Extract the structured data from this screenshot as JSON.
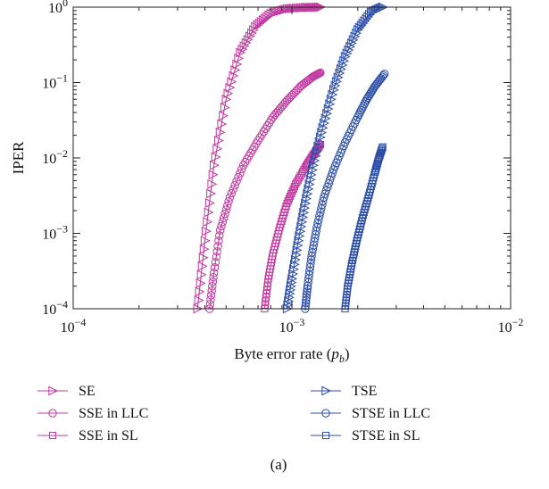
{
  "colors": {
    "magenta": "#C0389F",
    "blue": "#2A4CA6"
  },
  "chart_data": {
    "type": "line",
    "title": "",
    "xlabel": "Byte error rate (",
    "xlabel_symbol": "p",
    "xlabel_subscript": "b",
    "xlabel_suffix": ")",
    "ylabel": "IPER",
    "x_scale": "log",
    "y_scale": "log",
    "xlim": [
      0.0001,
      0.01
    ],
    "ylim": [
      0.0001,
      1
    ],
    "x_ticks": [
      {
        "base": "10",
        "exp": "−4"
      },
      {
        "base": "10",
        "exp": "−3"
      },
      {
        "base": "10",
        "exp": "−2"
      }
    ],
    "y_ticks": [
      {
        "base": "10",
        "exp": "0"
      },
      {
        "base": "10",
        "exp": "−1"
      },
      {
        "base": "10",
        "exp": "−2"
      },
      {
        "base": "10",
        "exp": "−3"
      },
      {
        "base": "10",
        "exp": "−4"
      }
    ],
    "grid": false,
    "legend_position": "below",
    "caption": "(a)",
    "series": [
      {
        "name": "SE",
        "color": "#C0389F",
        "marker": "triangle-right",
        "x": [
          0.00037,
          0.0004,
          0.00044,
          0.0005,
          0.00058,
          0.00068,
          0.0008,
          0.00095,
          0.00115,
          0.00135
        ],
        "y": [
          0.0001,
          0.0008,
          0.008,
          0.06,
          0.25,
          0.55,
          0.82,
          0.95,
          0.99,
          1.0
        ]
      },
      {
        "name": "SSE in LLC",
        "color": "#C0389F",
        "marker": "circle",
        "x": [
          0.00042,
          0.00044,
          0.00047,
          0.00052,
          0.0006,
          0.0007,
          0.00082,
          0.00095,
          0.0011,
          0.00125,
          0.00135
        ],
        "y": [
          0.0001,
          0.0003,
          0.0011,
          0.003,
          0.008,
          0.017,
          0.035,
          0.058,
          0.09,
          0.12,
          0.135
        ]
      },
      {
        "name": "SSE in SL",
        "color": "#C0389F",
        "marker": "square",
        "x": [
          0.00075,
          0.00078,
          0.00082,
          0.00088,
          0.00095,
          0.00104,
          0.00115,
          0.00125,
          0.00135
        ],
        "y": [
          0.0001,
          0.00025,
          0.00055,
          0.0012,
          0.0025,
          0.0045,
          0.0075,
          0.011,
          0.015
        ]
      },
      {
        "name": "TSE",
        "color": "#2A4CA6",
        "marker": "triangle-right",
        "x": [
          0.00095,
          0.001,
          0.00107,
          0.00115,
          0.00125,
          0.00138,
          0.00155,
          0.00175,
          0.002,
          0.0023,
          0.0026
        ],
        "y": [
          0.0001,
          0.00025,
          0.0008,
          0.0025,
          0.008,
          0.025,
          0.08,
          0.22,
          0.5,
          0.85,
          1.0
        ]
      },
      {
        "name": "STSE in LLC",
        "color": "#2A4CA6",
        "marker": "circle",
        "x": [
          0.00115,
          0.00118,
          0.00123,
          0.0013,
          0.0014,
          0.00155,
          0.00175,
          0.002,
          0.0022,
          0.0024,
          0.00265
        ],
        "y": [
          0.0001,
          0.0002,
          0.0005,
          0.0012,
          0.003,
          0.007,
          0.016,
          0.035,
          0.06,
          0.09,
          0.13
        ]
      },
      {
        "name": "STSE in SL",
        "color": "#2A4CA6",
        "marker": "square",
        "x": [
          0.00175,
          0.0018,
          0.00188,
          0.00198,
          0.0021,
          0.00225,
          0.0024,
          0.0025,
          0.0026
        ],
        "y": [
          0.0001,
          0.0002,
          0.0004,
          0.0008,
          0.0016,
          0.0032,
          0.0065,
          0.01,
          0.014
        ]
      }
    ]
  }
}
